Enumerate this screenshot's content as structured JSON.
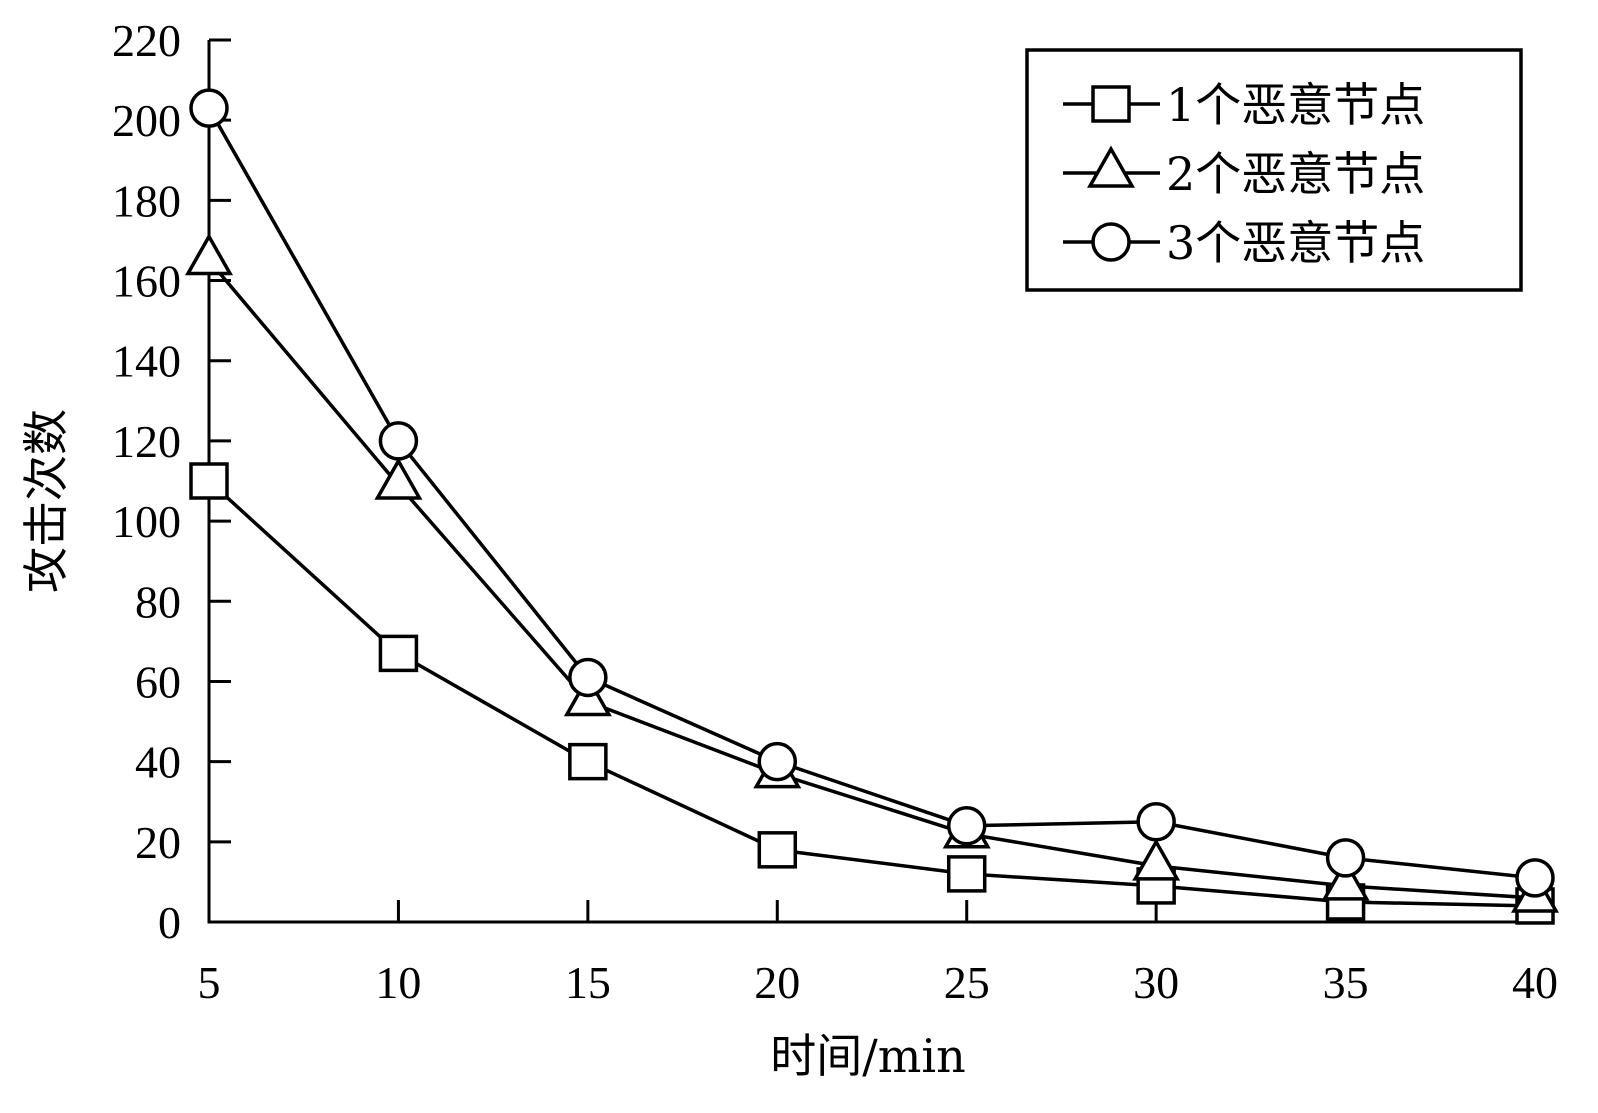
{
  "chart_data": {
    "type": "line",
    "title": "",
    "xlabel": "时间/min",
    "ylabel": "攻击次数",
    "x": [
      5,
      10,
      15,
      20,
      25,
      30,
      35,
      40
    ],
    "xlim": [
      5,
      40
    ],
    "ylim": [
      0,
      220
    ],
    "xticks": [
      "5",
      "10",
      "15",
      "20",
      "25",
      "30",
      "35",
      "40"
    ],
    "yticks": [
      "0",
      "20",
      "40",
      "60",
      "80",
      "100",
      "120",
      "140",
      "160",
      "180",
      "200",
      "220"
    ],
    "grid": false,
    "legend_position": "top-right",
    "series": [
      {
        "name": "1个恶意节点",
        "marker": "square",
        "values": [
          110,
          67,
          40,
          18,
          12,
          9,
          5,
          4
        ]
      },
      {
        "name": "2个恶意节点",
        "marker": "triangle",
        "values": [
          165,
          109,
          55,
          37,
          22,
          14,
          9,
          6
        ]
      },
      {
        "name": "3个恶意节点",
        "marker": "circle",
        "values": [
          203,
          120,
          61,
          40,
          24,
          25,
          16,
          11
        ]
      }
    ],
    "line_color": "#000000"
  }
}
